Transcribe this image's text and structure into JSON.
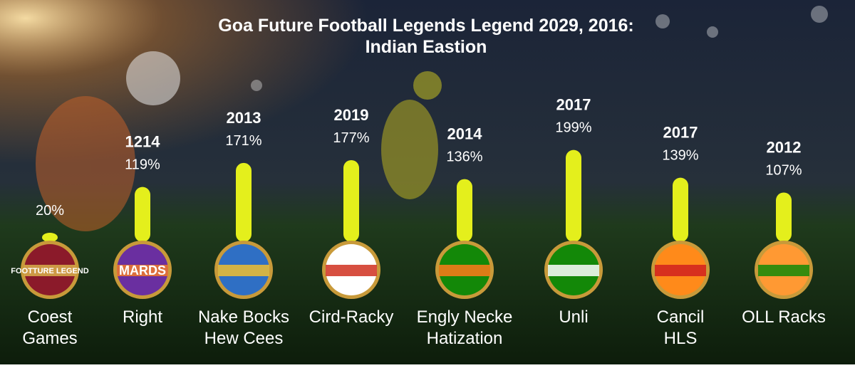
{
  "chart_data": {
    "type": "bar",
    "title": "Goa Future Football Legends Legend 2029, 2016:\nIndian Eastion",
    "categories": [
      "Coest\nGames",
      "Right",
      "Nake Bocks\nHew Cees",
      "Cird-Racky",
      "Engly Necke\nHatization",
      "Unli",
      "Cancil\nHLS",
      "OLL Racks"
    ],
    "years": [
      null,
      "1214",
      "2013",
      "2019",
      "2014",
      "2017",
      "2017",
      "2012"
    ],
    "values": [
      20,
      119,
      171,
      177,
      136,
      199,
      139,
      107
    ],
    "value_labels": [
      "20%",
      "119%",
      "171%",
      "177%",
      "136%",
      "199%",
      "139%",
      "107%"
    ],
    "badge_labels": [
      "FOOTTURE LEGEND",
      "MARDS",
      null,
      null,
      null,
      null,
      null,
      null
    ],
    "color": "#e4ef1c"
  }
}
